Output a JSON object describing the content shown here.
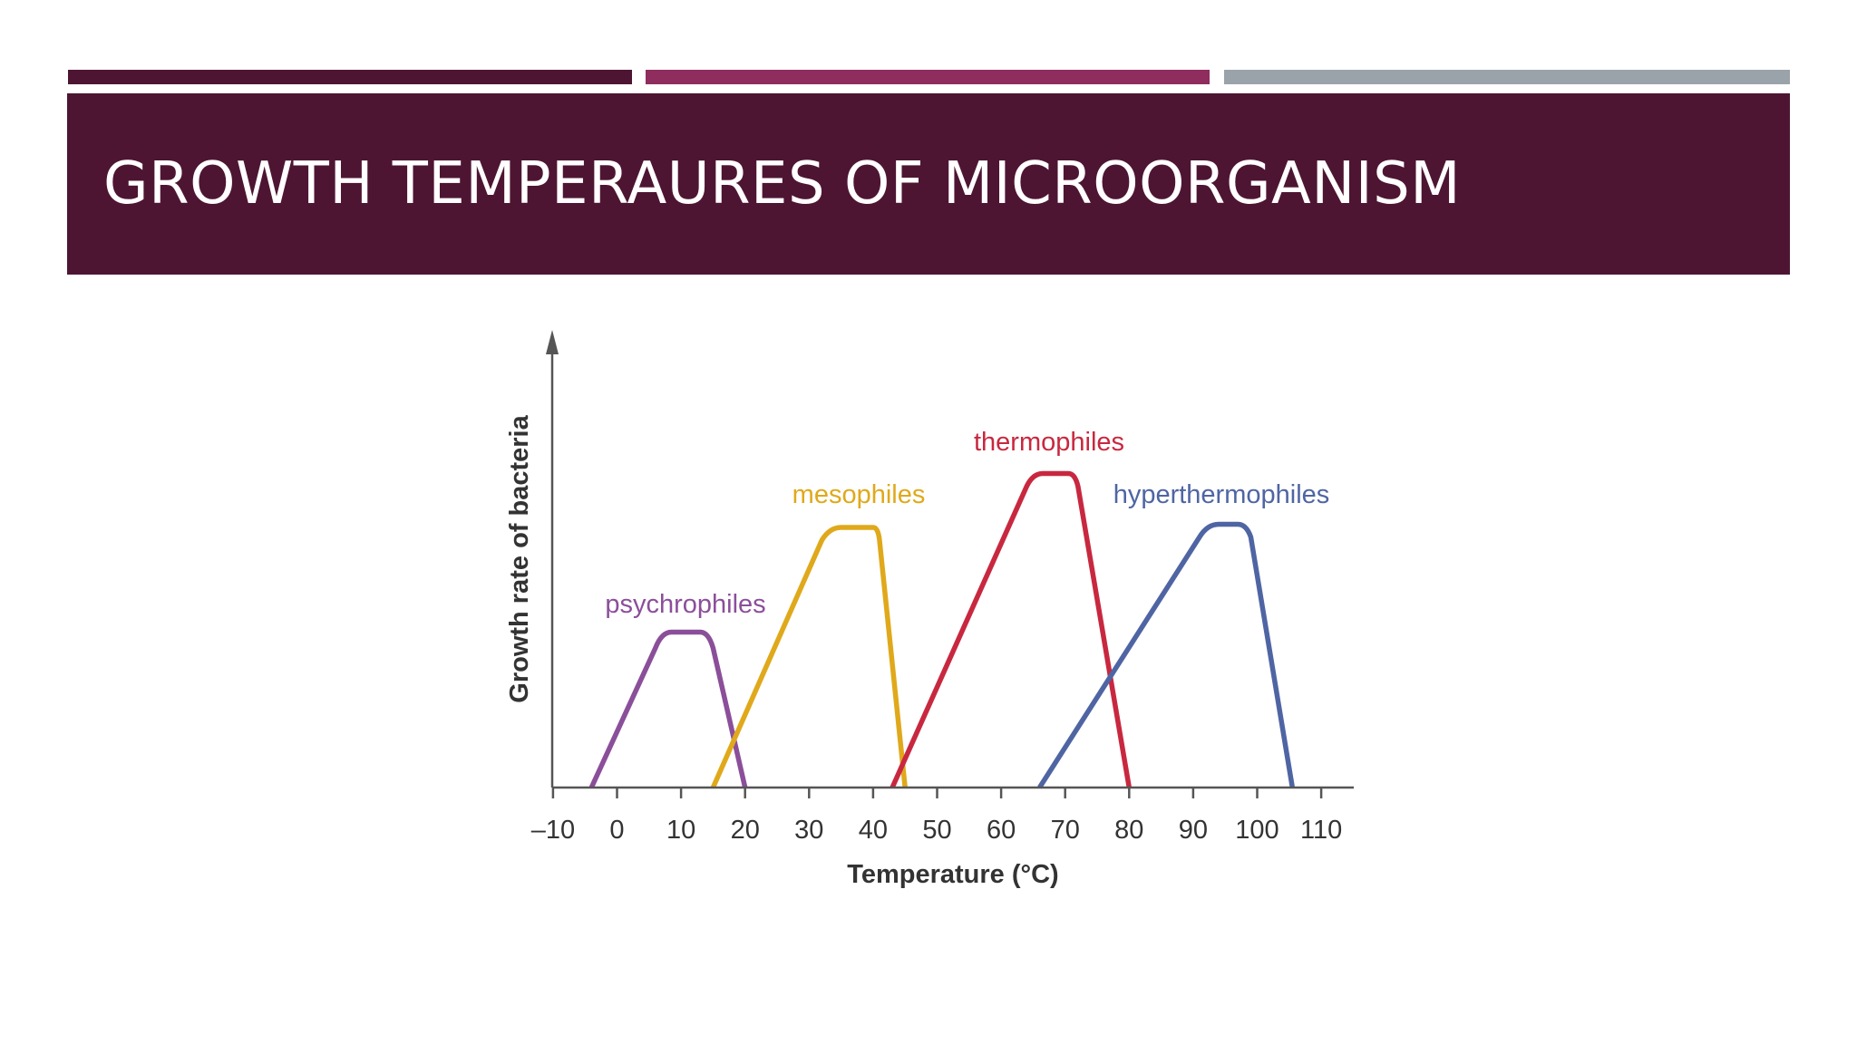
{
  "slide": {
    "title": "GROWTH TEMPERAURES OF MICROORGANISM",
    "colors": {
      "title_band": "#4e1533",
      "accent_1": "#4e1533",
      "accent_2": "#8e2d5e",
      "accent_3": "#9aa3aa",
      "title_text": "#ffffff"
    }
  },
  "chart_data": {
    "type": "line",
    "title": "",
    "xlabel": "Temperature (°C)",
    "ylabel": "Growth rate of bacteria",
    "xlim": [
      -10,
      115
    ],
    "ylim": [
      0,
      1.05
    ],
    "xticks": [
      -10,
      0,
      10,
      20,
      30,
      40,
      50,
      60,
      70,
      80,
      90,
      100,
      110
    ],
    "xtick_labels": [
      "–10",
      "0",
      "10",
      "20",
      "30",
      "40",
      "50",
      "60",
      "70",
      "80",
      "90",
      "100",
      "110"
    ],
    "y_ticks_shown": false,
    "grid": false,
    "legend": "none",
    "series": [
      {
        "name": "psychrophiles",
        "color": "#8b4f9a",
        "points": [
          [
            -4,
            0
          ],
          [
            6,
            0.44
          ],
          [
            8.5,
            0.49
          ],
          [
            13,
            0.49
          ],
          [
            15,
            0.44
          ],
          [
            20,
            0
          ]
        ]
      },
      {
        "name": "mesophiles",
        "color": "#e0a91b",
        "points": [
          [
            15,
            0
          ],
          [
            32,
            0.78
          ],
          [
            35,
            0.82
          ],
          [
            40,
            0.82
          ],
          [
            41,
            0.78
          ],
          [
            45,
            0
          ]
        ]
      },
      {
        "name": "thermophiles",
        "color": "#c8283f",
        "points": [
          [
            43,
            0
          ],
          [
            64,
            0.95
          ],
          [
            66.5,
            0.99
          ],
          [
            70.5,
            0.99
          ],
          [
            72,
            0.95
          ],
          [
            80,
            0
          ]
        ]
      },
      {
        "name": "hyperthermophiles",
        "color": "#4f65a3",
        "points": [
          [
            66,
            0
          ],
          [
            91,
            0.79
          ],
          [
            94,
            0.83
          ],
          [
            97,
            0.83
          ],
          [
            99,
            0.79
          ],
          [
            105.5,
            0
          ]
        ]
      }
    ]
  }
}
